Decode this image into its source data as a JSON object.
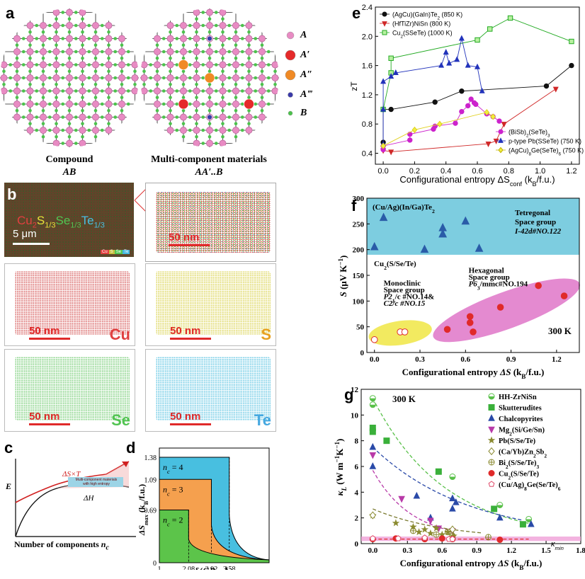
{
  "panel_a": {
    "label": "a",
    "compound_title": "Compound",
    "compound_formula": "AB",
    "multi_title": "Multi-component materials",
    "multi_formula": "AA′..B",
    "legend": [
      {
        "sym": "A",
        "color": "#e88bc3"
      },
      {
        "sym": "A′",
        "color": "#e52a2a"
      },
      {
        "sym": "A″",
        "color": "#f08a25"
      },
      {
        "sym": "A‴",
        "color": "#3a3aa8"
      },
      {
        "sym": "B",
        "color": "#4cc24c"
      }
    ]
  },
  "panel_b": {
    "label": "b",
    "formula_parts": [
      {
        "t": "Cu",
        "c": "#e04040"
      },
      {
        "t": "2",
        "c": "#e04040",
        "sub": true
      },
      {
        "t": "S",
        "c": "#e6e03a"
      },
      {
        "t": "1/3",
        "c": "#e6e03a",
        "sub": true
      },
      {
        "t": "Se",
        "c": "#52c452"
      },
      {
        "t": "1/3",
        "c": "#52c452",
        "sub": true
      },
      {
        "t": "Te",
        "c": "#46c0e0"
      },
      {
        "t": "1/3",
        "c": "#46c0e0",
        "sub": true
      }
    ],
    "scalebar_main": "5 μm",
    "swatches": [
      "Cu",
      "S",
      "Se",
      "Te"
    ],
    "scalebar": "50 nm",
    "elements": [
      {
        "name": "Cu",
        "color": "#e04040"
      },
      {
        "name": "S",
        "color": "#e8a020"
      },
      {
        "name": "Se",
        "color": "#52c452"
      },
      {
        "name": "Te",
        "color": "#46a8e0"
      }
    ]
  },
  "panel_c": {
    "label": "c",
    "ylabel": "E",
    "xlabel": "Number of components",
    "xlabel_var": "n",
    "xlabel_sub": "c",
    "curve1": "ΔS×T",
    "curve2": "ΔH",
    "box_text1": "Multi-component materials",
    "box_text2": "with high entropy"
  },
  "panel_d": {
    "label": "d",
    "ylabel": "ΔS",
    "ylabel_sub": "max",
    "ylabel_units": "(k",
    "ylabel_units2": "B",
    "ylabel_units3": "/f.u.)",
    "yticks": [
      "1.38",
      "1.09",
      "0.69",
      "0"
    ],
    "xticks": [
      "1",
      "2.08",
      "2.92",
      "3.58"
    ],
    "xlabel": "δ(GPa·Å)",
    "regions": [
      {
        "label": "n",
        "sub": "c",
        "val": "= 4",
        "color": "#48bfe0"
      },
      {
        "label": "n",
        "sub": "c",
        "val": "= 3",
        "color": "#f5a04e"
      },
      {
        "label": "n",
        "sub": "c",
        "val": "= 2",
        "color": "#5cc44a"
      }
    ]
  },
  "panel_e": {
    "label": "e",
    "ylabel": "zT",
    "xlabel": "Configurational entropy ΔS",
    "xlabel_sub": "conf",
    "xlabel_units": "(k",
    "xlabel_units2": "B",
    "xlabel_units3": "/f.u.)",
    "legend_top": [
      {
        "text": "(AgCu)(GaIn)Te",
        "sub": "2",
        "tail": " (850 K)"
      },
      {
        "text": "(HfTiZr)NiSn",
        "sub": "",
        "tail": " (800 K)"
      },
      {
        "text": "Cu",
        "sub": "2",
        "tail": "(SSeTe) (1000 K)"
      }
    ],
    "legend_bottom": [
      {
        "text": "(BiSb)",
        "sub": "2",
        "tail": "(SeTe)",
        "sub2": "3"
      },
      {
        "text": "p-type Pb(SSeTe) (750 K)",
        "sub": "",
        "tail": "",
        "sub2": ""
      },
      {
        "text": "(AgCu)",
        "sub": "8",
        "tail": "Ge(SeTe)",
        "sub2": "6",
        "tail2": " (750 K)"
      }
    ],
    "xticks": [
      "0.0",
      "0.2",
      "0.4",
      "0.6",
      "0.8",
      "1.0",
      "1.2"
    ],
    "yticks": [
      "0.4",
      "0.8",
      "1.2",
      "1.6",
      "2.0",
      "2.4"
    ]
  },
  "panel_f": {
    "label": "f",
    "ylabel": "S",
    "ylabel_units": "(μV K",
    "ylabel_units_sup": "−1",
    "ylabel_units_end": ")",
    "xlabel": "Configurational entropy",
    "xlabel_var": "ΔS",
    "xlabel_units": "(k",
    "xlabel_units2": "B",
    "xlabel_units3": "/f.u.)",
    "top_compound": "(Cu/Ag)(In/Ga)Te",
    "top_compound_sub": "2",
    "tetra1": "Tetregonal",
    "tetra2": "Space group",
    "tetra3": "I-42d#NO.122",
    "cu_label": "Cu",
    "cu_label_sub": "2",
    "cu_label_tail": "(S/Se/Te)",
    "hex1": "Hexagonal",
    "hex2": "Space group",
    "hex3": "P6",
    "hex3_sub": "3",
    "hex3_tail": "/mmc#NO.194",
    "mono1": "Monoclinic",
    "mono2": "Space group",
    "mono3": "P2",
    "mono3_sub": "1",
    "mono3_tail": "/c #NO.14&",
    "mono4": "C2/c #NO.15",
    "temp": "300 K",
    "xticks": [
      "0.0",
      "0.3",
      "0.6",
      "0.9",
      "1.2"
    ],
    "yticks": [
      "0",
      "50",
      "100",
      "150",
      "200",
      "250",
      "300"
    ]
  },
  "panel_g": {
    "label": "g",
    "temp": "300 K",
    "ylabel": "κ",
    "ylabel_sub": "L",
    "ylabel_units": "(W m",
    "ylabel_sup1": "−1",
    "ylabel_mid": "K",
    "ylabel_sup2": "−1",
    "ylabel_end": ")",
    "xlabel": "Configurational entropy",
    "xlabel_var": "ΔS",
    "xlabel_units": "(k",
    "xlabel_units2": "B",
    "xlabel_units3": "/f.u.)",
    "kmin": "κ",
    "kmin_sub": "min",
    "xticks": [
      "0.0",
      "0.3",
      "0.6",
      "0.9",
      "1.2",
      "1.5",
      "1.8"
    ],
    "yticks": [
      "0",
      "2",
      "4",
      "6",
      "8",
      "10",
      "12"
    ],
    "legend": [
      {
        "text": "HH-ZrNiSn"
      },
      {
        "text": "Skutterudites"
      },
      {
        "text": "Chalcopyrites"
      },
      {
        "text": "Mg",
        "sub": "2",
        "tail": "(Si/Ge/Sn)"
      },
      {
        "text": "Pb(S/Se/Te)"
      },
      {
        "text": "(Ca/Yb)Zn",
        "sub": "2",
        "tail": "Sb",
        "sub2": "2"
      },
      {
        "text": "Bi",
        "sub": "2",
        "tail": "(S/Se/Te)",
        "sub2": "3"
      },
      {
        "text": "Cu",
        "sub": "2",
        "tail": "(S/Se/Te)"
      },
      {
        "text": "(Cu/Ag)",
        "sub": "8",
        "tail": "Ge(Se/Te)",
        "sub2": "6"
      }
    ]
  },
  "chart_data": [
    {
      "panel": "d",
      "type": "area",
      "xlabel": "δ(GPa·Å)",
      "ylabel": "ΔSmax (kB/f.u.)",
      "series": [
        {
          "name": "nc = 4",
          "plateau": 1.38,
          "cutoff": 3.58
        },
        {
          "name": "nc = 3",
          "plateau": 1.09,
          "cutoff": 2.92
        },
        {
          "name": "nc = 2",
          "plateau": 0.69,
          "cutoff": 2.08
        }
      ]
    },
    {
      "panel": "e",
      "type": "line",
      "xlabel": "Configurational entropy ΔSconf (kB/f.u.)",
      "ylabel": "zT",
      "xlim": [
        -0.05,
        1.25
      ],
      "ylim": [
        0.25,
        2.4
      ],
      "series": [
        {
          "name": "(AgCu)(GaIn)Te2 (850 K)",
          "color": "#111111",
          "marker": "circle",
          "x": [
            0,
            0,
            0.05,
            0.33,
            0.5,
            1.04,
            1.2
          ],
          "y": [
            0.55,
            1.0,
            1.0,
            1.1,
            1.25,
            1.32,
            1.6
          ]
        },
        {
          "name": "(HfTiZr)NiSn (800 K)",
          "color": "#d02828",
          "marker": "tri-down",
          "x": [
            0,
            0.05,
            0.67,
            0.72,
            0.77,
            1.1
          ],
          "y": [
            0.44,
            0.42,
            0.53,
            0.57,
            0.8,
            1.28
          ]
        },
        {
          "name": "Cu2(SSeTe) (1000 K)",
          "color": "#22aa22",
          "marker": "square",
          "x": [
            0,
            0.05,
            0.05,
            0.6,
            0.68,
            0.81,
            1.2
          ],
          "y": [
            1.0,
            1.5,
            1.7,
            1.95,
            2.1,
            2.25,
            1.93
          ]
        },
        {
          "name": "(BiSb)2(SeTe)3",
          "color": "#cc22cc",
          "marker": "circle",
          "x": [
            0,
            0.0,
            0.17,
            0.17,
            0.32,
            0.33,
            0.46,
            0.5,
            0.54,
            0.56,
            0.58,
            0.59,
            0.66,
            0.7,
            0.74
          ],
          "y": [
            0.45,
            0.5,
            0.58,
            0.66,
            0.73,
            0.77,
            0.81,
            0.97,
            1.05,
            1.14,
            1.09,
            1.07,
            0.94,
            0.9,
            0.84
          ]
        },
        {
          "name": "p-type Pb(SSeTe) (750 K)",
          "color": "#2233bb",
          "marker": "tri-up",
          "x": [
            0,
            0,
            0.0,
            0.05,
            0.08,
            0.37,
            0.4,
            0.42,
            0.47,
            0.5,
            0.54,
            0.6,
            0.63
          ],
          "y": [
            0.52,
            1.0,
            1.38,
            1.45,
            1.5,
            1.6,
            1.78,
            1.63,
            1.68,
            1.97,
            1.6,
            1.58,
            1.25
          ]
        },
        {
          "name": "(AgCu)8Ge(SeTe)6 (750 K)",
          "color": "#e0d020",
          "marker": "diamond",
          "x": [
            0,
            0.2,
            0.36,
            0.66,
            0.7
          ],
          "y": [
            0.5,
            0.72,
            0.8,
            0.96,
            0.9
          ]
        }
      ]
    },
    {
      "panel": "f",
      "type": "scatter",
      "xlabel": "Configurational entropy ΔS (kB/f.u.)",
      "ylabel": "S (μV K−1)",
      "xlim": [
        -0.05,
        1.35
      ],
      "ylim": [
        0,
        300
      ],
      "series": [
        {
          "name": "(Cu/Ag)(In/Ga)Te2",
          "color": "#2a5ca8",
          "marker": "tri-up",
          "x": [
            0,
            0.06,
            0.33,
            0.45,
            0.45,
            0.45,
            0.6,
            0.69
          ],
          "y": [
            205,
            262,
            200,
            230,
            242,
            230,
            255,
            202
          ]
        },
        {
          "name": "Cu2(S/Se/Te)",
          "color": "#e02a2a",
          "marker": "circle",
          "x": [
            0,
            0.17,
            0.2,
            0.48,
            0.63,
            0.63,
            0.65,
            0.83,
            1.08,
            1.25
          ],
          "y": [
            25,
            40,
            40,
            45,
            58,
            70,
            40,
            88,
            130,
            110
          ]
        }
      ]
    },
    {
      "panel": "g",
      "type": "scatter",
      "xlabel": "Configurational entropy ΔS (kB/f.u.)",
      "ylabel": "κL (W m−1 K−1)",
      "xlim": [
        -0.1,
        1.8
      ],
      "ylim": [
        0,
        12
      ],
      "series": [
        {
          "name": "HH-ZrNiSn",
          "color": "#58c048",
          "x": [
            0,
            0,
            0.69,
            1.1,
            1.35
          ],
          "y": [
            11.3,
            10.8,
            5.2,
            3.0,
            1.9
          ]
        },
        {
          "name": "Skutterudites",
          "color": "#3ab03a",
          "x": [
            0,
            0,
            0.12,
            0.57,
            1.05,
            1.3
          ],
          "y": [
            9.0,
            8.7,
            8.0,
            5.6,
            2.7,
            1.5
          ]
        },
        {
          "name": "Chalcopyrites",
          "color": "#2a4aa8",
          "x": [
            0,
            0,
            0.38,
            0.5,
            0.69,
            0.69,
            0.72,
            1.1,
            1.37
          ],
          "y": [
            7.5,
            6.0,
            3.7,
            2.0,
            3.5,
            2.7,
            3.2,
            2.0,
            1.5
          ]
        },
        {
          "name": "Mg2(Si/Ge/Sn)",
          "color": "#b83aa8",
          "x": [
            0,
            0.25,
            0.5,
            0.57,
            0.69
          ],
          "y": [
            6.9,
            3.5,
            1.8,
            1.2,
            1.0
          ]
        },
        {
          "name": "Pb(S/Se/Te)",
          "color": "#8a8a30",
          "x": [
            0,
            0.2,
            0.35,
            0.4,
            0.45,
            0.5,
            0.55,
            0.6,
            0.65,
            0.7
          ],
          "y": [
            2.2,
            1.6,
            1.3,
            0.9,
            1.1,
            0.8,
            1.2,
            0.7,
            0.9,
            0.6
          ]
        },
        {
          "name": "(Ca/Yb)Zn2Sb2",
          "color": "#8a8a30",
          "x": [
            0,
            0.69
          ],
          "y": [
            2.2,
            1.1
          ]
        },
        {
          "name": "Bi2(S/Se/Te)3",
          "color": "#8a8a30",
          "x": [
            0.35,
            0.55,
            0.65,
            0.69,
            1.0
          ],
          "y": [
            1.0,
            0.7,
            0.9,
            0.6,
            0.5
          ]
        },
        {
          "name": "Cu2(S/Se/Te)",
          "color": "#e02a2a",
          "x": [
            0,
            0.2,
            0.45,
            0.6,
            0.69,
            1.1
          ],
          "y": [
            0.35,
            0.4,
            0.35,
            0.4,
            0.35,
            0.3
          ]
        },
        {
          "name": "(Cu/Ag)8Ge(Se/Te)6",
          "color": "#e04a6a",
          "x": [
            0,
            0.22,
            0.45,
            0.66,
            0.69
          ],
          "y": [
            0.4,
            0.4,
            0.45,
            0.35,
            0.35
          ]
        }
      ]
    }
  ]
}
